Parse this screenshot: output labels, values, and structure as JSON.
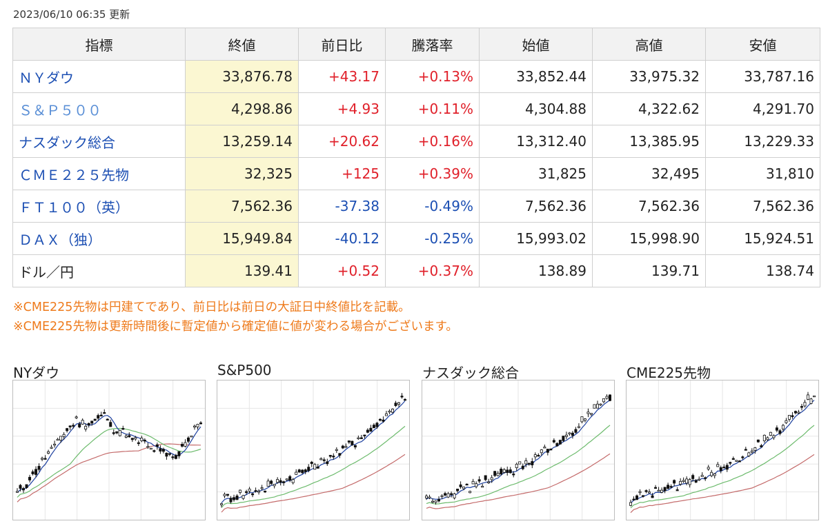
{
  "updated_text": "2023/06/10 06:35 更新",
  "table": {
    "headers": [
      "指標",
      "終値",
      "前日比",
      "騰落率",
      "始値",
      "高値",
      "安値"
    ],
    "rows": [
      {
        "name": "ＮＹダウ",
        "close": "33,876.78",
        "change": "+43.17",
        "rate": "+0.13%",
        "open": "33,852.44",
        "high": "33,975.32",
        "low": "33,787.16",
        "direction": "up"
      },
      {
        "name": "Ｓ＆Ｐ５００",
        "close": "4,298.86",
        "change": "+4.93",
        "rate": "+0.11%",
        "open": "4,304.88",
        "high": "4,322.62",
        "low": "4,291.70",
        "direction": "up"
      },
      {
        "name": "ナスダック総合",
        "close": "13,259.14",
        "change": "+20.62",
        "rate": "+0.16%",
        "open": "13,312.40",
        "high": "13,385.95",
        "low": "13,229.33",
        "direction": "up"
      },
      {
        "name": "ＣＭＥ２２５先物",
        "close": "32,325",
        "change": "+125",
        "rate": "+0.39%",
        "open": "31,825",
        "high": "32,495",
        "low": "31,810",
        "direction": "up"
      },
      {
        "name": "ＦＴ１００（英）",
        "close": "7,562.36",
        "change": "-37.38",
        "rate": "-0.49%",
        "open": "7,562.36",
        "high": "7,562.36",
        "low": "7,562.36",
        "direction": "down"
      },
      {
        "name": "ＤＡＸ（独）",
        "close": "15,949.84",
        "change": "-40.12",
        "rate": "-0.25%",
        "open": "15,993.02",
        "high": "15,998.90",
        "low": "15,924.51",
        "direction": "down"
      },
      {
        "name": "ドル／円",
        "close": "139.41",
        "change": "+0.52",
        "rate": "+0.37%",
        "open": "138.89",
        "high": "139.71",
        "low": "138.74",
        "direction": "up"
      }
    ]
  },
  "notes": [
    "※CME225先物は円建てであり、前日比は前日の大証日中終値比を記載。",
    "※CME225先物は更新時間後に暫定値から確定値に値が変わる場合がございます。"
  ],
  "charts": [
    {
      "title": "NYダウ",
      "trend": "rise-fall-rise"
    },
    {
      "title": "S&P500",
      "trend": "steady-rise"
    },
    {
      "title": "ナスダック総合",
      "trend": "steady-rise"
    },
    {
      "title": "CME225先物",
      "trend": "steady-rise"
    }
  ],
  "colors": {
    "up": "#e0202a",
    "down": "#1c4fb3",
    "name_link": "#1c4fb3",
    "close_bg": "#fbf7d2",
    "note": "#ee7a1b",
    "ma_short": "#1c3f9e",
    "ma_mid": "#6dbb6d",
    "ma_long": "#c46a6a"
  }
}
